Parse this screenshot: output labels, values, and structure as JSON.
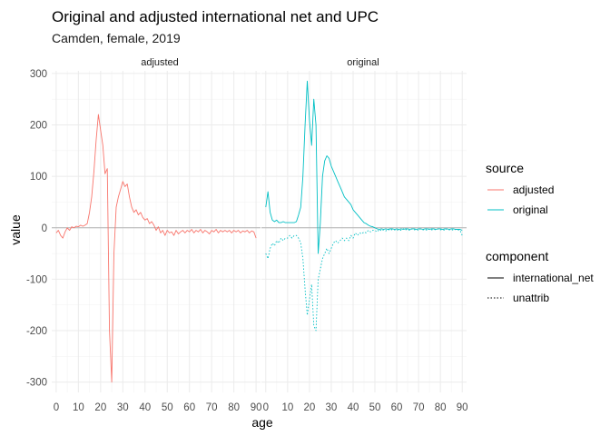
{
  "chart_data": {
    "type": "line",
    "title": "Original and adjusted international net and UPC",
    "subtitle": "Camden, female, 2019",
    "xlabel": "age",
    "ylabel": "value",
    "xlim": [
      -2,
      92
    ],
    "ylim": [
      -320,
      305
    ],
    "x_ticks": [
      0,
      10,
      20,
      30,
      40,
      50,
      60,
      70,
      80,
      90
    ],
    "y_ticks": [
      -300,
      -200,
      -100,
      0,
      100,
      200,
      300
    ],
    "hline_y": 0,
    "facets": [
      "adjusted",
      "original"
    ],
    "legend_placement": "right",
    "legend": {
      "source": {
        "title": "source",
        "items": [
          {
            "label": "adjusted",
            "color": "#F8766D"
          },
          {
            "label": "original",
            "color": "#00BFC4"
          }
        ]
      },
      "component": {
        "title": "component",
        "items": [
          {
            "label": "international_net",
            "linetype": "solid"
          },
          {
            "label": "unattrib",
            "linetype": "dotted"
          }
        ]
      }
    },
    "series": [
      {
        "facet": "adjusted",
        "source": "adjusted",
        "component": "international_net",
        "color": "#F8766D",
        "points": [
          [
            0,
            -10
          ],
          [
            1,
            -5
          ],
          [
            2,
            -15
          ],
          [
            3,
            -20
          ],
          [
            4,
            -8
          ],
          [
            5,
            0
          ],
          [
            6,
            -5
          ],
          [
            7,
            2
          ],
          [
            8,
            0
          ],
          [
            9,
            3
          ],
          [
            10,
            2
          ],
          [
            11,
            5
          ],
          [
            12,
            3
          ],
          [
            13,
            5
          ],
          [
            14,
            8
          ],
          [
            15,
            30
          ],
          [
            16,
            60
          ],
          [
            17,
            110
          ],
          [
            18,
            170
          ],
          [
            19,
            220
          ],
          [
            20,
            190
          ],
          [
            21,
            160
          ],
          [
            22,
            105
          ],
          [
            23,
            115
          ],
          [
            24,
            -200
          ],
          [
            25,
            -300
          ],
          [
            26,
            -50
          ],
          [
            27,
            40
          ],
          [
            28,
            60
          ],
          [
            29,
            75
          ],
          [
            30,
            90
          ],
          [
            31,
            80
          ],
          [
            32,
            85
          ],
          [
            33,
            60
          ],
          [
            34,
            40
          ],
          [
            35,
            30
          ],
          [
            36,
            35
          ],
          [
            37,
            25
          ],
          [
            38,
            30
          ],
          [
            39,
            20
          ],
          [
            40,
            15
          ],
          [
            41,
            18
          ],
          [
            42,
            8
          ],
          [
            43,
            12
          ],
          [
            44,
            5
          ],
          [
            45,
            -5
          ],
          [
            46,
            2
          ],
          [
            47,
            -10
          ],
          [
            48,
            -5
          ],
          [
            49,
            -15
          ],
          [
            50,
            -5
          ],
          [
            51,
            -10
          ],
          [
            52,
            -8
          ],
          [
            53,
            -15
          ],
          [
            54,
            -5
          ],
          [
            55,
            -12
          ],
          [
            56,
            -8
          ],
          [
            57,
            -5
          ],
          [
            58,
            -10
          ],
          [
            59,
            -5
          ],
          [
            60,
            -8
          ],
          [
            61,
            -3
          ],
          [
            62,
            -10
          ],
          [
            63,
            -5
          ],
          [
            64,
            -8
          ],
          [
            65,
            -3
          ],
          [
            66,
            -10
          ],
          [
            67,
            -5
          ],
          [
            68,
            -8
          ],
          [
            69,
            -12
          ],
          [
            70,
            -5
          ],
          [
            71,
            -8
          ],
          [
            72,
            -3
          ],
          [
            73,
            -10
          ],
          [
            74,
            -5
          ],
          [
            75,
            -8
          ],
          [
            76,
            -5
          ],
          [
            77,
            -8
          ],
          [
            78,
            -5
          ],
          [
            79,
            -10
          ],
          [
            80,
            -5
          ],
          [
            81,
            -8
          ],
          [
            82,
            -5
          ],
          [
            83,
            -10
          ],
          [
            84,
            -6
          ],
          [
            85,
            -8
          ],
          [
            86,
            -5
          ],
          [
            87,
            -10
          ],
          [
            88,
            -6
          ],
          [
            89,
            -8
          ],
          [
            90,
            -20
          ]
        ]
      },
      {
        "facet": "original",
        "source": "original",
        "component": "international_net",
        "color": "#00BFC4",
        "points": [
          [
            0,
            40
          ],
          [
            1,
            70
          ],
          [
            2,
            30
          ],
          [
            3,
            15
          ],
          [
            4,
            12
          ],
          [
            5,
            15
          ],
          [
            6,
            10
          ],
          [
            7,
            10
          ],
          [
            8,
            12
          ],
          [
            9,
            10
          ],
          [
            10,
            10
          ],
          [
            11,
            10
          ],
          [
            12,
            10
          ],
          [
            13,
            10
          ],
          [
            14,
            12
          ],
          [
            15,
            25
          ],
          [
            16,
            40
          ],
          [
            17,
            100
          ],
          [
            18,
            200
          ],
          [
            19,
            285
          ],
          [
            20,
            210
          ],
          [
            21,
            160
          ],
          [
            22,
            250
          ],
          [
            23,
            200
          ],
          [
            24,
            -50
          ],
          [
            25,
            10
          ],
          [
            26,
            100
          ],
          [
            27,
            130
          ],
          [
            28,
            140
          ],
          [
            29,
            135
          ],
          [
            30,
            120
          ],
          [
            31,
            110
          ],
          [
            32,
            100
          ],
          [
            33,
            90
          ],
          [
            34,
            80
          ],
          [
            35,
            70
          ],
          [
            36,
            60
          ],
          [
            37,
            55
          ],
          [
            38,
            50
          ],
          [
            39,
            45
          ],
          [
            40,
            35
          ],
          [
            41,
            30
          ],
          [
            42,
            25
          ],
          [
            43,
            20
          ],
          [
            44,
            15
          ],
          [
            45,
            10
          ],
          [
            46,
            8
          ],
          [
            47,
            5
          ],
          [
            48,
            3
          ],
          [
            49,
            2
          ],
          [
            50,
            0
          ],
          [
            51,
            -2
          ],
          [
            52,
            -3
          ],
          [
            53,
            -2
          ],
          [
            54,
            -3
          ],
          [
            55,
            -2
          ],
          [
            56,
            -3
          ],
          [
            57,
            -2
          ],
          [
            58,
            -2
          ],
          [
            59,
            -3
          ],
          [
            60,
            -2
          ],
          [
            61,
            -3
          ],
          [
            62,
            -2
          ],
          [
            63,
            -3
          ],
          [
            64,
            -2
          ],
          [
            65,
            -2
          ],
          [
            66,
            -3
          ],
          [
            67,
            -2
          ],
          [
            68,
            -2
          ],
          [
            69,
            -3
          ],
          [
            70,
            -2
          ],
          [
            71,
            -2
          ],
          [
            72,
            -3
          ],
          [
            73,
            -2
          ],
          [
            74,
            -2
          ],
          [
            75,
            -3
          ],
          [
            76,
            -2
          ],
          [
            77,
            -2
          ],
          [
            78,
            -3
          ],
          [
            79,
            -2
          ],
          [
            80,
            -2
          ],
          [
            81,
            -3
          ],
          [
            82,
            -2
          ],
          [
            83,
            -2
          ],
          [
            84,
            -3
          ],
          [
            85,
            -2
          ],
          [
            86,
            -2
          ],
          [
            87,
            -3
          ],
          [
            88,
            -3
          ],
          [
            89,
            -3
          ],
          [
            90,
            -5
          ]
        ]
      },
      {
        "facet": "original",
        "source": "original",
        "component": "unattrib",
        "color": "#00BFC4",
        "points": [
          [
            0,
            -50
          ],
          [
            1,
            -60
          ],
          [
            2,
            -40
          ],
          [
            3,
            -30
          ],
          [
            4,
            -35
          ],
          [
            5,
            -25
          ],
          [
            6,
            -30
          ],
          [
            7,
            -20
          ],
          [
            8,
            -25
          ],
          [
            9,
            -20
          ],
          [
            10,
            -20
          ],
          [
            11,
            -15
          ],
          [
            12,
            -20
          ],
          [
            13,
            -15
          ],
          [
            14,
            -15
          ],
          [
            15,
            -20
          ],
          [
            16,
            -30
          ],
          [
            17,
            -60
          ],
          [
            18,
            -120
          ],
          [
            19,
            -170
          ],
          [
            20,
            -140
          ],
          [
            21,
            -110
          ],
          [
            22,
            -190
          ],
          [
            23,
            -200
          ],
          [
            24,
            -100
          ],
          [
            25,
            -80
          ],
          [
            26,
            -60
          ],
          [
            27,
            -50
          ],
          [
            28,
            -40
          ],
          [
            29,
            -50
          ],
          [
            30,
            -40
          ],
          [
            31,
            -30
          ],
          [
            32,
            -25
          ],
          [
            33,
            -30
          ],
          [
            34,
            -25
          ],
          [
            35,
            -20
          ],
          [
            36,
            -25
          ],
          [
            37,
            -20
          ],
          [
            38,
            -25
          ],
          [
            39,
            -15
          ],
          [
            40,
            -20
          ],
          [
            41,
            -10
          ],
          [
            42,
            -15
          ],
          [
            43,
            -10
          ],
          [
            44,
            -12
          ],
          [
            45,
            -8
          ],
          [
            46,
            -10
          ],
          [
            47,
            -5
          ],
          [
            48,
            -8
          ],
          [
            49,
            -5
          ],
          [
            50,
            -5
          ],
          [
            51,
            -8
          ],
          [
            52,
            -3
          ],
          [
            53,
            -6
          ],
          [
            54,
            -4
          ],
          [
            55,
            -6
          ],
          [
            56,
            -3
          ],
          [
            57,
            -5
          ],
          [
            58,
            -3
          ],
          [
            59,
            -4
          ],
          [
            60,
            -5
          ],
          [
            61,
            -3
          ],
          [
            62,
            -5
          ],
          [
            63,
            -2
          ],
          [
            64,
            -4
          ],
          [
            65,
            -3
          ],
          [
            66,
            -5
          ],
          [
            67,
            -2
          ],
          [
            68,
            -4
          ],
          [
            69,
            -3
          ],
          [
            70,
            -5
          ],
          [
            71,
            -2
          ],
          [
            72,
            -4
          ],
          [
            73,
            -3
          ],
          [
            74,
            -5
          ],
          [
            75,
            -2
          ],
          [
            76,
            -4
          ],
          [
            77,
            -3
          ],
          [
            78,
            -4
          ],
          [
            79,
            -2
          ],
          [
            80,
            -4
          ],
          [
            81,
            -3
          ],
          [
            82,
            -5
          ],
          [
            83,
            -2
          ],
          [
            84,
            -4
          ],
          [
            85,
            -3
          ],
          [
            86,
            -5
          ],
          [
            87,
            -3
          ],
          [
            88,
            -4
          ],
          [
            89,
            -5
          ],
          [
            90,
            -15
          ]
        ]
      }
    ]
  }
}
